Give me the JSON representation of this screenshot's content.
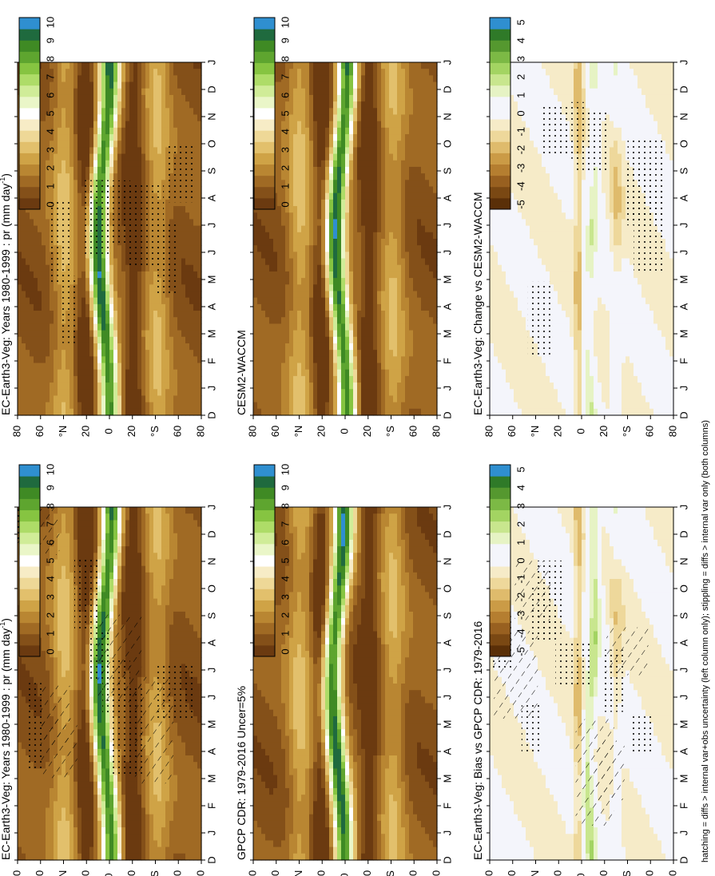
{
  "footnote": "hatching = diffs > internal var+obs uncertainty (left column only); stippling = diffs > internal var only (both columns)",
  "chart_data": {
    "type": "heatmap",
    "x_axis_months": [
      "D",
      "J",
      "F",
      "M",
      "A",
      "M",
      "J",
      "J",
      "A",
      "S",
      "O",
      "N",
      "D",
      "J"
    ],
    "y_axis_ticks": [
      "80",
      "60",
      "°N",
      "20",
      "0",
      "20",
      "°S",
      "60",
      "80"
    ],
    "colorbar_abs": {
      "ticks": [
        "10",
        "9",
        "8",
        "7",
        "6",
        "5",
        "4",
        "3",
        "2",
        "1",
        "0"
      ]
    },
    "colorbar_diff": {
      "ticks": [
        "5",
        "4",
        "3",
        "2",
        "1",
        "0",
        "-1",
        "-2",
        "-3",
        "-4",
        "-5"
      ]
    },
    "palette_abs": [
      "#6b3a10",
      "#845019",
      "#a06a24",
      "#b98632",
      "#cfa346",
      "#e2c06c",
      "#eed897",
      "#f7ecc6",
      "#ffffff",
      "#eaf6c8",
      "#d0ec98",
      "#aedc68",
      "#86c441",
      "#5ea52f",
      "#3f8a24",
      "#1f6a3e",
      "#2f8fd0"
    ],
    "palette_diff": [
      "#5a2f08",
      "#7a4813",
      "#986020",
      "#b57e30",
      "#cb9b46",
      "#dfbb6c",
      "#eed89b",
      "#f6ebc8",
      "#f4f5fb",
      "#f4f5fb",
      "#e6f3c4",
      "#c8e68e",
      "#a3d462",
      "#7cb945",
      "#55982f",
      "#2f7a28",
      "#2f8fd0"
    ],
    "hatch_key_words": {
      "hatching": "hatching",
      "stippling": "stippling"
    },
    "panels": [
      {
        "title": "EC-Earth3-Veg: Years 1980-1999 : pr (mm day",
        "title_sup": "-1",
        "title_end": ")",
        "kind": "abs",
        "hatched": true,
        "stippled": true
      },
      {
        "title": "EC-Earth3-Veg: Years 1980-1999 : pr (mm day",
        "title_sup": "-1",
        "title_end": ")",
        "kind": "abs",
        "hatched": false,
        "stippled": true
      },
      {
        "title": "GPCP CDR: 1979-2016 Uncer=5%",
        "kind": "abs",
        "hatched": false,
        "stippled": false
      },
      {
        "title": "CESM2-WACCM",
        "kind": "abs",
        "hatched": false,
        "stippled": false
      },
      {
        "title": "EC-Earth3-Veg: Bias vs GPCP CDR: 1979-2016",
        "kind": "diff",
        "hatched": true,
        "stippled": true
      },
      {
        "title": "EC-Earth3-Veg: Change vs CESM2-WACCM",
        "kind": "diff",
        "hatched": false,
        "stippled": true
      }
    ]
  }
}
